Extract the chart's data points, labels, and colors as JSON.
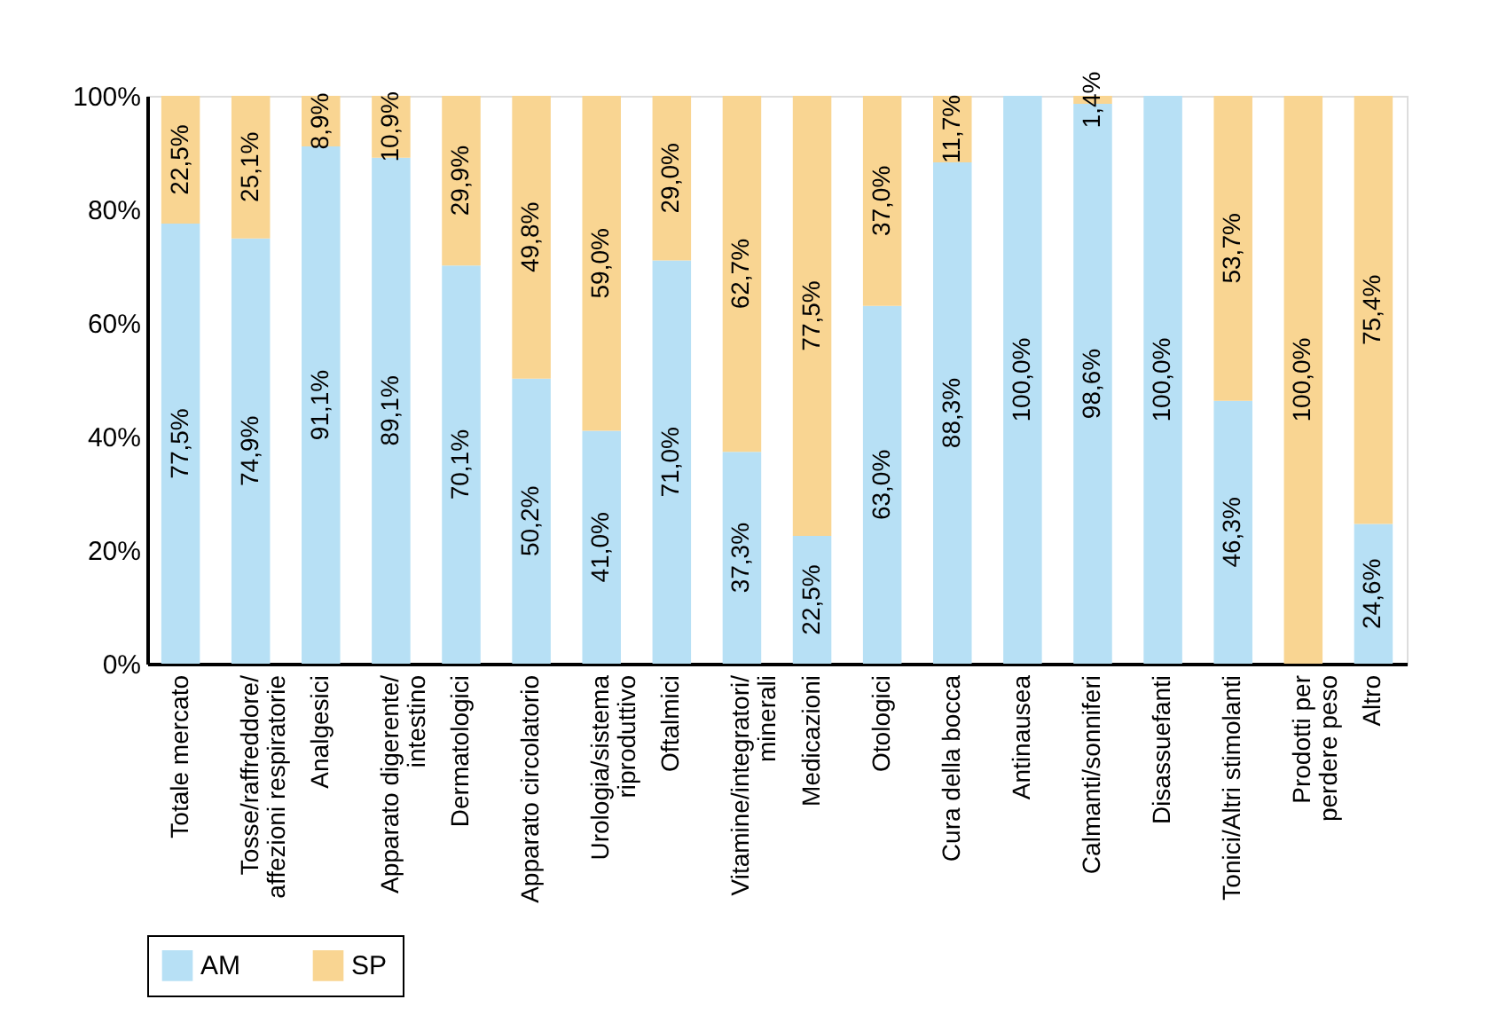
{
  "chart_data": {
    "type": "bar",
    "stacked": true,
    "categories": [
      "Totale mercato",
      "Tosse/raffreddore/\naffezioni respiratorie",
      "Analgesici",
      "Apparato digerente/\nintestino",
      "Dermatologici",
      "Apparato circolatorio",
      "Urologia/sistema\nriproduttivo",
      "Oftalmici",
      "Vitamine/integratori/\nminerali",
      "Medicazioni",
      "Otologici",
      "Cura della bocca",
      "Antinausea",
      "Calmanti/sonniferi",
      "Disassuefanti",
      "Tonici/Altri stimolanti",
      "Prodotti per\nperdere peso",
      "Altro"
    ],
    "series": [
      {
        "name": "AM",
        "color": "#b7e0f5",
        "values": [
          77.5,
          74.9,
          91.1,
          89.1,
          70.1,
          50.2,
          41.0,
          71.0,
          37.3,
          22.5,
          63.0,
          88.3,
          100.0,
          98.6,
          100.0,
          46.3,
          null,
          24.6
        ],
        "value_labels": [
          "77,5%",
          "74,9%",
          "91,1%",
          "89,1%",
          "70,1%",
          "50,2%",
          "41,0%",
          "71,0%",
          "37,3%",
          "22,5%",
          "63,0%",
          "88,3%",
          "100,0%",
          "98,6%",
          "100,0%",
          "46,3%",
          null,
          "24,6%"
        ]
      },
      {
        "name": "SP",
        "color": "#f9d592",
        "values": [
          22.5,
          25.1,
          8.9,
          10.9,
          29.9,
          49.8,
          59.0,
          29.0,
          62.7,
          77.5,
          37.0,
          11.7,
          null,
          1.4,
          null,
          53.7,
          100.0,
          75.4
        ],
        "value_labels": [
          "22,5%",
          "25,1%",
          "8,9%",
          "10,9%",
          "29,9%",
          "49,8%",
          "59,0%",
          "29,0%",
          "62,7%",
          "77,5%",
          "37,0%",
          "11,7%",
          null,
          "1,4%",
          null,
          "53,7%",
          "100,0%",
          "75,4%"
        ]
      }
    ],
    "ylim": [
      0,
      100
    ],
    "yticks": [
      {
        "value": 0,
        "label": "0%"
      },
      {
        "value": 20,
        "label": "20%"
      },
      {
        "value": 40,
        "label": "40%"
      },
      {
        "value": 60,
        "label": "60%"
      },
      {
        "value": 80,
        "label": "80%"
      },
      {
        "value": 100,
        "label": "100%"
      }
    ],
    "grid": false,
    "legend": "bottom"
  }
}
